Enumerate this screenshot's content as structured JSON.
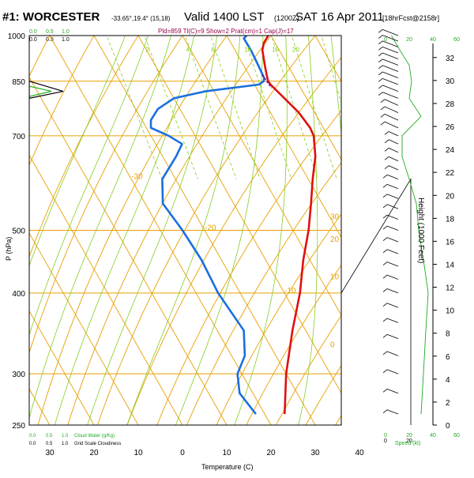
{
  "header": {
    "station": "#1: WORCESTER",
    "coords": "-33.65°,19.4° (15,18)",
    "valid": "Valid 1400 LST",
    "valid_utc": "(1200Z)",
    "date": "SAT 16 Apr 2011",
    "forecast": "[18hrFcst@2158r]",
    "indices": "Pld=859 Tl(C)=9 Show=2 Prat(cm)=1 Cap(J)=17"
  },
  "colors": {
    "temperature": "#e01010",
    "dewpoint": "#1a6fe0",
    "isobar": "#e8a000",
    "isotherm": "#e8a000",
    "dry_adiabat": "#e8a000",
    "moist_adiabat": "#88cc22",
    "mixing_ratio": "#88cc22",
    "cloud": "#000000",
    "speed": "#22aa22",
    "header_indices": "#990044"
  },
  "chart_data": {
    "type": "line",
    "title": "",
    "xlabel": "Temperature (C)",
    "ylabel": "P (hPa)",
    "y2label": "Height (1000 Feet)",
    "y_scale": "log",
    "xlim": [
      -37,
      50
    ],
    "ylim": [
      1000,
      250
    ],
    "x_ticks": [
      "30",
      "20",
      "10",
      "0",
      "10",
      "20",
      "30",
      "40"
    ],
    "y_ticks": [
      "250",
      "300",
      "400",
      "500",
      "700",
      "850",
      "1000"
    ],
    "height_ticks": [
      "0",
      "2",
      "4",
      "6",
      "8",
      "10",
      "12",
      "14",
      "16",
      "18",
      "20",
      "22",
      "24",
      "26",
      "28",
      "30",
      "32"
    ],
    "isotherm_labels": [
      "0",
      "-10",
      "-20",
      "-30",
      "10",
      "20",
      "30"
    ],
    "top_scale": {
      "labels": [
        "0.0",
        "0.5",
        "1.0"
      ]
    },
    "cloud_scale": {
      "labels": [
        "0.0",
        "0.5",
        "1.0"
      ],
      "caption": "Cloud Water (g/Kg)"
    },
    "bottom_scale": {
      "labels": [
        "0.0",
        "0.5",
        "1.0"
      ],
      "caption": "Grid Scale Cloudiness"
    },
    "mixing_ratio_labels": [
      "2",
      "4",
      "6",
      "10",
      "15",
      "20"
    ],
    "speed_axis": {
      "ticks": [
        "0",
        "20",
        "40",
        "60"
      ],
      "label": "Speed (kt)"
    },
    "wind_panel_ticks": [
      "0",
      "20"
    ],
    "series": [
      {
        "name": "Temperature",
        "points": [
          {
            "p": 1000,
            "t": 19.4
          },
          {
            "p": 975,
            "t": 17.5
          },
          {
            "p": 950,
            "t": 16.2
          },
          {
            "p": 900,
            "t": 14.8
          },
          {
            "p": 870,
            "t": 14.0
          },
          {
            "p": 850,
            "t": 13.5
          },
          {
            "p": 840,
            "t": 13.6
          },
          {
            "p": 800,
            "t": 15.0
          },
          {
            "p": 760,
            "t": 16.4
          },
          {
            "p": 720,
            "t": 17.0
          },
          {
            "p": 700,
            "t": 16.8
          },
          {
            "p": 650,
            "t": 14.5
          },
          {
            "p": 600,
            "t": 11.0
          },
          {
            "p": 550,
            "t": 7.5
          },
          {
            "p": 500,
            "t": 3.5
          },
          {
            "p": 450,
            "t": -1.5
          },
          {
            "p": 400,
            "t": -6.5
          },
          {
            "p": 350,
            "t": -13.0
          },
          {
            "p": 300,
            "t": -20.0
          },
          {
            "p": 260,
            "t": -25.5
          }
        ]
      },
      {
        "name": "Dewpoint",
        "points": [
          {
            "p": 1000,
            "t": 14.5
          },
          {
            "p": 990,
            "t": 13.5
          },
          {
            "p": 950,
            "t": 13.6
          },
          {
            "p": 900,
            "t": 13.3
          },
          {
            "p": 860,
            "t": 13.0
          },
          {
            "p": 850,
            "t": 12.5
          },
          {
            "p": 840,
            "t": 11.0
          },
          {
            "p": 820,
            "t": -2.0
          },
          {
            "p": 800,
            "t": -10.0
          },
          {
            "p": 770,
            "t": -15.0
          },
          {
            "p": 740,
            "t": -18.0
          },
          {
            "p": 720,
            "t": -19.0
          },
          {
            "p": 700,
            "t": -16.0
          },
          {
            "p": 680,
            "t": -14.0
          },
          {
            "p": 650,
            "t": -17.0
          },
          {
            "p": 600,
            "t": -23.0
          },
          {
            "p": 550,
            "t": -26.0
          },
          {
            "p": 500,
            "t": -25.0
          },
          {
            "p": 450,
            "t": -24.5
          },
          {
            "p": 400,
            "t": -25.0
          },
          {
            "p": 350,
            "t": -24.0
          },
          {
            "p": 320,
            "t": -27.0
          },
          {
            "p": 300,
            "t": -31.0
          },
          {
            "p": 280,
            "t": -33.0
          },
          {
            "p": 260,
            "t": -32.0
          }
        ]
      },
      {
        "name": "Wind speed",
        "points": [
          {
            "p": 1000,
            "kt": 5
          },
          {
            "p": 950,
            "kt": 12
          },
          {
            "p": 900,
            "kt": 20
          },
          {
            "p": 850,
            "kt": 22
          },
          {
            "p": 800,
            "kt": 20
          },
          {
            "p": 750,
            "kt": 30
          },
          {
            "p": 700,
            "kt": 14
          },
          {
            "p": 650,
            "kt": 14
          },
          {
            "p": 600,
            "kt": 20
          },
          {
            "p": 550,
            "kt": 26
          },
          {
            "p": 500,
            "kt": 28
          },
          {
            "p": 450,
            "kt": 32
          },
          {
            "p": 400,
            "kt": 36
          },
          {
            "p": 350,
            "kt": 34
          },
          {
            "p": 300,
            "kt": 32
          },
          {
            "p": 260,
            "kt": 30
          }
        ]
      }
    ],
    "wind_barbs_shown": true,
    "grid": true
  }
}
